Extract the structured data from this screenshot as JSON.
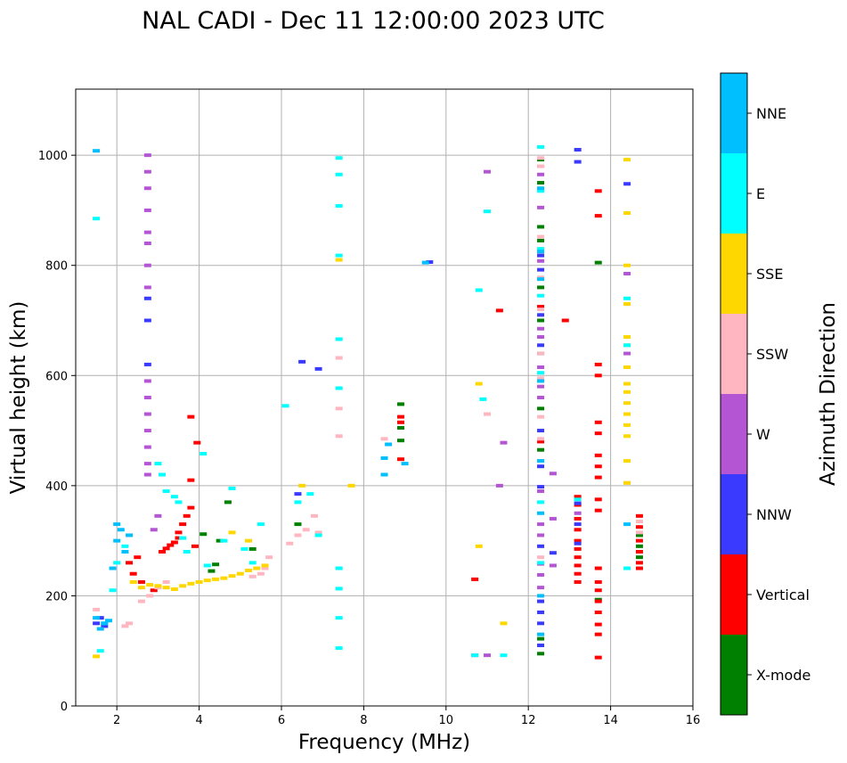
{
  "chart_data": {
    "type": "scatter",
    "title": "NAL CADI - Dec 11 12:00:00 2023 UTC",
    "xlabel": "Frequency (MHz)",
    "ylabel": "Virtual height (km)",
    "xlim": [
      1,
      16
    ],
    "ylim": [
      0,
      1120
    ],
    "xticks": [
      2,
      4,
      6,
      8,
      10,
      12,
      14,
      16
    ],
    "yticks": [
      0,
      200,
      400,
      600,
      800,
      1000
    ],
    "grid": true,
    "colorbar": {
      "label": "Azimuth Direction",
      "categories": [
        {
          "name": "X-mode",
          "color": "#008000"
        },
        {
          "name": "Vertical",
          "color": "#ff0000"
        },
        {
          "name": "NNW",
          "color": "#3a3aff"
        },
        {
          "name": "W",
          "color": "#b455d4"
        },
        {
          "name": "SSW",
          "color": "#ffb6c1"
        },
        {
          "name": "SSE",
          "color": "#ffd700"
        },
        {
          "name": "E",
          "color": "#00ffff"
        },
        {
          "name": "NNE",
          "color": "#00bfff"
        }
      ]
    },
    "series": [
      {
        "name": "X-mode",
        "points": [
          [
            4.3,
            245
          ],
          [
            4.4,
            257
          ],
          [
            4.1,
            312
          ],
          [
            4.5,
            300
          ],
          [
            4.7,
            370
          ],
          [
            5.3,
            285
          ],
          [
            6.4,
            330
          ],
          [
            8.9,
            548
          ],
          [
            8.9,
            482
          ],
          [
            8.9,
            505
          ],
          [
            12.3,
            992
          ],
          [
            12.3,
            950
          ],
          [
            12.3,
            870
          ],
          [
            12.3,
            845
          ],
          [
            12.3,
            760
          ],
          [
            12.3,
            700
          ],
          [
            12.3,
            640
          ],
          [
            12.3,
            540
          ],
          [
            12.3,
            465
          ],
          [
            12.3,
            122
          ],
          [
            12.3,
            95
          ],
          [
            13.7,
            805
          ],
          [
            13.7,
            193
          ],
          [
            14.7,
            310
          ],
          [
            14.7,
            290
          ],
          [
            14.7,
            270
          ]
        ]
      },
      {
        "name": "Vertical",
        "points": [
          [
            2.3,
            260
          ],
          [
            2.4,
            240
          ],
          [
            2.5,
            270
          ],
          [
            2.6,
            225
          ],
          [
            2.9,
            210
          ],
          [
            3.1,
            280
          ],
          [
            3.2,
            286
          ],
          [
            3.3,
            292
          ],
          [
            3.4,
            297
          ],
          [
            3.5,
            305
          ],
          [
            3.5,
            315
          ],
          [
            3.6,
            330
          ],
          [
            3.7,
            345
          ],
          [
            3.8,
            360
          ],
          [
            3.8,
            410
          ],
          [
            3.9,
            290
          ],
          [
            3.8,
            525
          ],
          [
            3.95,
            478
          ],
          [
            8.9,
            525
          ],
          [
            8.9,
            515
          ],
          [
            8.9,
            448
          ],
          [
            10.7,
            230
          ],
          [
            11.3,
            718
          ],
          [
            12.3,
            980
          ],
          [
            12.3,
            725
          ],
          [
            12.3,
            480
          ],
          [
            12.9,
            700
          ],
          [
            13.2,
            380
          ],
          [
            13.2,
            365
          ],
          [
            13.2,
            340
          ],
          [
            13.2,
            320
          ],
          [
            13.2,
            300
          ],
          [
            13.2,
            285
          ],
          [
            13.2,
            270
          ],
          [
            13.2,
            255
          ],
          [
            13.2,
            240
          ],
          [
            13.2,
            225
          ],
          [
            13.7,
            935
          ],
          [
            13.7,
            890
          ],
          [
            13.7,
            620
          ],
          [
            13.7,
            600
          ],
          [
            13.7,
            515
          ],
          [
            13.7,
            495
          ],
          [
            13.7,
            455
          ],
          [
            13.7,
            435
          ],
          [
            13.7,
            415
          ],
          [
            13.7,
            375
          ],
          [
            13.7,
            355
          ],
          [
            13.7,
            250
          ],
          [
            13.7,
            225
          ],
          [
            13.7,
            210
          ],
          [
            13.7,
            190
          ],
          [
            13.7,
            170
          ],
          [
            13.7,
            148
          ],
          [
            13.7,
            130
          ],
          [
            13.7,
            88
          ],
          [
            14.7,
            345
          ],
          [
            14.7,
            325
          ],
          [
            14.7,
            300
          ],
          [
            14.7,
            280
          ],
          [
            14.7,
            260
          ],
          [
            14.7,
            250
          ]
        ]
      },
      {
        "name": "NNW",
        "points": [
          [
            1.5,
            150
          ],
          [
            1.6,
            160
          ],
          [
            1.7,
            145
          ],
          [
            2.75,
            700
          ],
          [
            2.75,
            740
          ],
          [
            2.75,
            620
          ],
          [
            6.4,
            385
          ],
          [
            6.5,
            625
          ],
          [
            6.9,
            612
          ],
          [
            9.6,
            806
          ],
          [
            12.3,
            818
          ],
          [
            12.3,
            792
          ],
          [
            12.3,
            710
          ],
          [
            12.3,
            655
          ],
          [
            12.3,
            500
          ],
          [
            12.3,
            435
          ],
          [
            12.3,
            398
          ],
          [
            12.3,
            290
          ],
          [
            12.3,
            190
          ],
          [
            12.3,
            170
          ],
          [
            12.3,
            150
          ],
          [
            12.3,
            110
          ],
          [
            12.6,
            278
          ],
          [
            13.2,
            1010
          ],
          [
            13.2,
            988
          ],
          [
            13.2,
            368
          ],
          [
            13.2,
            330
          ],
          [
            13.2,
            295
          ],
          [
            14.4,
            948
          ]
        ]
      },
      {
        "name": "W",
        "points": [
          [
            2.75,
            1000
          ],
          [
            2.75,
            970
          ],
          [
            2.75,
            940
          ],
          [
            2.75,
            900
          ],
          [
            2.75,
            860
          ],
          [
            2.75,
            840
          ],
          [
            2.75,
            800
          ],
          [
            2.75,
            760
          ],
          [
            2.75,
            590
          ],
          [
            2.75,
            560
          ],
          [
            2.75,
            530
          ],
          [
            2.75,
            500
          ],
          [
            2.75,
            470
          ],
          [
            2.75,
            440
          ],
          [
            2.75,
            420
          ],
          [
            2.9,
            320
          ],
          [
            3.0,
            345
          ],
          [
            10.7,
            92
          ],
          [
            11.0,
            970
          ],
          [
            11.0,
            92
          ],
          [
            11.3,
            400
          ],
          [
            11.4,
            478
          ],
          [
            12.3,
            965
          ],
          [
            12.3,
            905
          ],
          [
            12.3,
            808
          ],
          [
            12.3,
            685
          ],
          [
            12.3,
            670
          ],
          [
            12.3,
            615
          ],
          [
            12.3,
            580
          ],
          [
            12.3,
            560
          ],
          [
            12.3,
            390
          ],
          [
            12.3,
            330
          ],
          [
            12.3,
            310
          ],
          [
            12.3,
            258
          ],
          [
            12.3,
            238
          ],
          [
            12.3,
            215
          ],
          [
            12.6,
            422
          ],
          [
            12.6,
            340
          ],
          [
            12.6,
            255
          ],
          [
            13.2,
            350
          ],
          [
            14.4,
            640
          ],
          [
            14.4,
            785
          ]
        ]
      },
      {
        "name": "SSW",
        "points": [
          [
            1.5,
            175
          ],
          [
            2.2,
            145
          ],
          [
            2.3,
            150
          ],
          [
            2.6,
            190
          ],
          [
            2.8,
            200
          ],
          [
            3.0,
            215
          ],
          [
            3.2,
            225
          ],
          [
            5.3,
            235
          ],
          [
            5.5,
            240
          ],
          [
            5.6,
            250
          ],
          [
            5.7,
            270
          ],
          [
            6.2,
            295
          ],
          [
            6.4,
            310
          ],
          [
            6.6,
            320
          ],
          [
            6.8,
            345
          ],
          [
            6.9,
            315
          ],
          [
            7.4,
            632
          ],
          [
            7.4,
            540
          ],
          [
            7.4,
            490
          ],
          [
            8.5,
            485
          ],
          [
            11.0,
            530
          ],
          [
            12.3,
            995
          ],
          [
            12.3,
            980
          ],
          [
            12.3,
            852
          ],
          [
            12.3,
            778
          ],
          [
            12.3,
            720
          ],
          [
            12.3,
            640
          ],
          [
            12.3,
            595
          ],
          [
            12.3,
            525
          ],
          [
            12.3,
            485
          ],
          [
            12.3,
            270
          ],
          [
            14.4,
            405
          ],
          [
            14.7,
            315
          ],
          [
            14.7,
            335
          ]
        ]
      },
      {
        "name": "SSE",
        "points": [
          [
            1.5,
            90
          ],
          [
            2.4,
            225
          ],
          [
            2.6,
            215
          ],
          [
            2.8,
            220
          ],
          [
            3.0,
            218
          ],
          [
            3.2,
            215
          ],
          [
            3.4,
            212
          ],
          [
            3.6,
            218
          ],
          [
            3.8,
            222
          ],
          [
            4.0,
            225
          ],
          [
            4.2,
            228
          ],
          [
            4.4,
            230
          ],
          [
            4.6,
            232
          ],
          [
            4.8,
            236
          ],
          [
            5.0,
            240
          ],
          [
            5.2,
            246
          ],
          [
            5.4,
            250
          ],
          [
            5.6,
            255
          ],
          [
            4.8,
            315
          ],
          [
            5.2,
            300
          ],
          [
            6.5,
            400
          ],
          [
            7.4,
            810
          ],
          [
            7.7,
            400
          ],
          [
            10.8,
            585
          ],
          [
            10.8,
            290
          ],
          [
            11.4,
            150
          ],
          [
            14.4,
            992
          ],
          [
            14.4,
            895
          ],
          [
            14.4,
            800
          ],
          [
            14.4,
            730
          ],
          [
            14.4,
            670
          ],
          [
            14.4,
            655
          ],
          [
            14.4,
            615
          ],
          [
            14.4,
            585
          ],
          [
            14.4,
            570
          ],
          [
            14.4,
            550
          ],
          [
            14.4,
            530
          ],
          [
            14.4,
            510
          ],
          [
            14.4,
            490
          ],
          [
            14.4,
            445
          ],
          [
            14.4,
            405
          ]
        ]
      },
      {
        "name": "E",
        "points": [
          [
            1.5,
            885
          ],
          [
            1.6,
            100
          ],
          [
            1.7,
            150
          ],
          [
            1.9,
            210
          ],
          [
            2.0,
            260
          ],
          [
            2.2,
            290
          ],
          [
            3.0,
            440
          ],
          [
            3.1,
            420
          ],
          [
            3.2,
            390
          ],
          [
            3.4,
            380
          ],
          [
            3.5,
            370
          ],
          [
            3.6,
            305
          ],
          [
            3.7,
            280
          ],
          [
            4.2,
            255
          ],
          [
            4.1,
            458
          ],
          [
            4.6,
            300
          ],
          [
            4.8,
            395
          ],
          [
            5.1,
            285
          ],
          [
            5.3,
            260
          ],
          [
            5.5,
            330
          ],
          [
            6.1,
            545
          ],
          [
            6.4,
            370
          ],
          [
            6.7,
            385
          ],
          [
            6.9,
            310
          ],
          [
            7.4,
            995
          ],
          [
            7.4,
            965
          ],
          [
            7.4,
            908
          ],
          [
            7.4,
            818
          ],
          [
            7.4,
            666
          ],
          [
            7.4,
            577
          ],
          [
            7.4,
            250
          ],
          [
            7.4,
            213
          ],
          [
            7.4,
            160
          ],
          [
            7.4,
            105
          ],
          [
            10.7,
            92
          ],
          [
            10.8,
            755
          ],
          [
            10.9,
            557
          ],
          [
            11.0,
            898
          ],
          [
            11.4,
            92
          ],
          [
            12.3,
            1015
          ],
          [
            12.3,
            935
          ],
          [
            12.3,
            830
          ],
          [
            12.3,
            745
          ],
          [
            12.3,
            605
          ],
          [
            12.3,
            370
          ],
          [
            12.3,
            260
          ],
          [
            13.2,
            375
          ],
          [
            14.4,
            740
          ],
          [
            14.4,
            655
          ],
          [
            14.4,
            250
          ]
        ]
      },
      {
        "name": "NNE",
        "points": [
          [
            1.5,
            1008
          ],
          [
            1.5,
            160
          ],
          [
            1.6,
            140
          ],
          [
            1.7,
            150
          ],
          [
            1.8,
            155
          ],
          [
            1.9,
            250
          ],
          [
            2.0,
            300
          ],
          [
            2.0,
            330
          ],
          [
            2.1,
            320
          ],
          [
            2.2,
            280
          ],
          [
            2.3,
            310
          ],
          [
            8.5,
            420
          ],
          [
            8.5,
            450
          ],
          [
            8.6,
            475
          ],
          [
            9.0,
            440
          ],
          [
            9.5,
            805
          ],
          [
            12.3,
            940
          ],
          [
            12.3,
            825
          ],
          [
            12.3,
            775
          ],
          [
            12.3,
            590
          ],
          [
            12.3,
            445
          ],
          [
            12.3,
            350
          ],
          [
            12.3,
            200
          ],
          [
            12.3,
            130
          ],
          [
            14.4,
            330
          ]
        ]
      }
    ]
  }
}
